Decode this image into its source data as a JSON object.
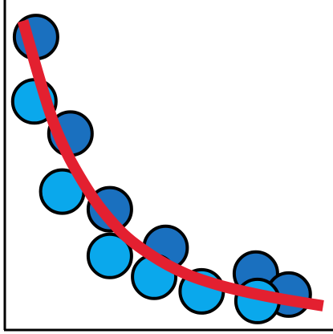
{
  "chart_data": {
    "type": "scatter",
    "title": "",
    "xlabel": "",
    "ylabel": "",
    "grid": false,
    "xlim": [
      0,
      10
    ],
    "ylim": [
      0,
      10
    ],
    "series": [
      {
        "color": "#1a70bf",
        "points": [
          {
            "x": 0.95,
            "y": 9.1
          },
          {
            "x": 2.0,
            "y": 6.1
          },
          {
            "x": 3.2,
            "y": 3.75
          },
          {
            "x": 4.9,
            "y": 2.55
          },
          {
            "x": 7.65,
            "y": 1.75
          },
          {
            "x": 8.65,
            "y": 1.1
          }
        ]
      },
      {
        "color": "#0aa8ec",
        "points": [
          {
            "x": 0.9,
            "y": 7.1
          },
          {
            "x": 1.75,
            "y": 4.3
          },
          {
            "x": 3.2,
            "y": 2.3
          },
          {
            "x": 4.55,
            "y": 1.65
          },
          {
            "x": 6.0,
            "y": 1.2
          },
          {
            "x": 7.7,
            "y": 0.9
          }
        ]
      }
    ],
    "fit_curve": {
      "type": "exponential decay",
      "color": "#e32030",
      "points": [
        {
          "x": 0.55,
          "y": 9.6
        },
        {
          "x": 1.5,
          "y": 6.4
        },
        {
          "x": 2.5,
          "y": 4.4
        },
        {
          "x": 3.5,
          "y": 3.1
        },
        {
          "x": 4.5,
          "y": 2.3
        },
        {
          "x": 5.5,
          "y": 1.75
        },
        {
          "x": 6.5,
          "y": 1.4
        },
        {
          "x": 7.5,
          "y": 1.15
        },
        {
          "x": 8.5,
          "y": 0.95
        },
        {
          "x": 9.7,
          "y": 0.75
        }
      ]
    }
  }
}
